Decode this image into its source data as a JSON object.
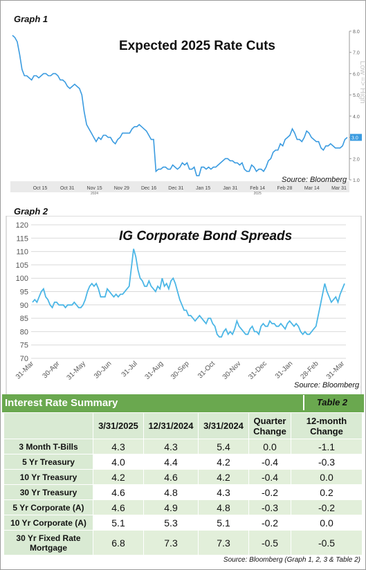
{
  "graph1": {
    "label": "Graph 1",
    "source": "Source: Bloomberg",
    "chart_data": {
      "type": "line",
      "title": "Expected 2025 Rate Cuts",
      "x_tick_labels": [
        "Oct 15",
        "Oct 31",
        "Nov 15",
        "Nov 29",
        "Dec 16",
        "Dec 31",
        "Jan 15",
        "Jan 31",
        "Feb 14",
        "Feb 28",
        "Mar 14",
        "Mar 31"
      ],
      "x_year_labels": [
        {
          "label": "2024",
          "at_tick": 2
        },
        {
          "label": "2025",
          "at_tick": 8
        }
      ],
      "y_tick_labels": [
        "8.0",
        "7.0",
        "6.0",
        "5.0",
        "4.0",
        "3.0",
        "2.0",
        "1.0"
      ],
      "y_axis_side": "right",
      "y_axis_title": "Low => High",
      "ylim": [
        1.0,
        8.0
      ],
      "last_value_label": "3.0",
      "line_color": "#3a9be0",
      "values": [
        7.8,
        7.7,
        7.5,
        6.9,
        6.2,
        5.9,
        5.9,
        5.8,
        5.7,
        5.9,
        5.9,
        5.8,
        5.9,
        6.0,
        6.0,
        5.9,
        5.9,
        6.0,
        6.0,
        5.9,
        5.7,
        5.7,
        5.6,
        5.4,
        5.3,
        5.4,
        5.5,
        5.4,
        5.3,
        5.0,
        4.2,
        3.6,
        3.4,
        3.2,
        3.0,
        2.8,
        3.0,
        2.9,
        3.1,
        3.1,
        3.0,
        3.0,
        2.8,
        2.7,
        2.9,
        3.0,
        3.2,
        3.2,
        3.2,
        3.2,
        3.4,
        3.5,
        3.5,
        3.6,
        3.5,
        3.4,
        3.3,
        3.1,
        2.9,
        2.9,
        1.4,
        1.5,
        1.5,
        1.6,
        1.6,
        1.5,
        1.5,
        1.7,
        1.6,
        1.5,
        1.6,
        1.8,
        1.7,
        1.8,
        1.5,
        1.5,
        1.6,
        1.2,
        1.2,
        1.6,
        1.6,
        1.5,
        1.6,
        1.5,
        1.6,
        1.6,
        1.7,
        1.8,
        1.9,
        2.0,
        2.0,
        1.9,
        1.9,
        1.8,
        1.8,
        1.7,
        1.8,
        1.5,
        1.4,
        1.4,
        1.7,
        1.6,
        1.4,
        1.5,
        1.5,
        1.4,
        1.6,
        1.9,
        2.0,
        2.3,
        2.4,
        2.4,
        2.7,
        2.6,
        2.9,
        3.0,
        3.1,
        3.4,
        3.2,
        2.9,
        2.9,
        2.8,
        3.0,
        3.3,
        3.2,
        3.0,
        2.9,
        2.8,
        2.8,
        2.5,
        2.4,
        2.6,
        2.6,
        2.7,
        2.6,
        2.5,
        2.5,
        2.5,
        2.6,
        2.9,
        3.0
      ]
    }
  },
  "graph2": {
    "label": "Graph 2",
    "source": "Source: Bloomberg",
    "chart_data": {
      "type": "line",
      "title": "IG Corporate Bond Spreads",
      "x_tick_labels": [
        "31-Mar",
        "30-Apr",
        "31-May",
        "30-Jun",
        "31-Jul",
        "31-Aug",
        "30-Sep",
        "31-Oct",
        "30-Nov",
        "31-Dec",
        "31-Jan",
        "28-Feb",
        "31-Mar"
      ],
      "y_tick_labels": [
        "120",
        "115",
        "110",
        "105",
        "100",
        "95",
        "90",
        "85",
        "80",
        "75",
        "70"
      ],
      "ylim": [
        70,
        120
      ],
      "grid": true,
      "line_color": "#4bb6e6",
      "values": [
        91,
        92,
        91,
        93,
        95,
        96,
        93,
        92,
        90,
        89,
        91,
        91,
        90,
        90,
        90,
        89,
        90,
        90,
        90,
        91,
        90,
        89,
        89,
        90,
        92,
        95,
        97,
        98,
        97,
        98,
        96,
        93,
        93,
        93,
        96,
        95,
        94,
        93,
        94,
        93,
        94,
        94,
        95,
        96,
        97,
        104,
        111,
        108,
        103,
        100,
        99,
        97,
        97,
        99,
        97,
        96,
        95,
        97,
        96,
        100,
        97,
        98,
        96,
        99,
        100,
        98,
        95,
        92,
        90,
        88,
        88,
        86,
        86,
        85,
        84,
        85,
        86,
        85,
        84,
        83,
        85,
        85,
        83,
        82,
        79,
        78,
        78,
        80,
        81,
        79,
        80,
        79,
        81,
        84,
        82,
        81,
        80,
        79,
        79,
        81,
        82,
        80,
        80,
        79,
        82,
        83,
        82,
        82,
        84,
        83,
        83,
        82,
        82,
        83,
        82,
        81,
        83,
        84,
        83,
        82,
        83,
        82,
        80,
        79,
        80,
        79,
        79,
        80,
        81,
        82,
        86,
        90,
        94,
        98,
        95,
        93,
        91,
        92,
        93,
        91,
        94,
        96,
        98
      ]
    }
  },
  "table": {
    "title": "Interest Rate Summary",
    "number": "Table 2",
    "headers": [
      "",
      "3/31/2025",
      "12/31/2024",
      "3/31/2024",
      "Quarter Change",
      "12-month Change"
    ],
    "rows": [
      {
        "label": "3 Month T-Bills",
        "cells": [
          "4.3",
          "4.3",
          "5.4",
          "0.0",
          "-1.1"
        ]
      },
      {
        "label": "5 Yr Treasury",
        "cells": [
          "4.0",
          "4.4",
          "4.2",
          "-0.4",
          "-0.3"
        ]
      },
      {
        "label": "10 Yr Treasury",
        "cells": [
          "4.2",
          "4.6",
          "4.2",
          "-0.4",
          "0.0"
        ]
      },
      {
        "label": "30 Yr Treasury",
        "cells": [
          "4.6",
          "4.8",
          "4.3",
          "-0.2",
          "0.2"
        ]
      },
      {
        "label": "5 Yr Corporate (A)",
        "cells": [
          "4.6",
          "4.9",
          "4.8",
          "-0.3",
          "-0.2"
        ]
      },
      {
        "label": "10 Yr Corporate (A)",
        "cells": [
          "5.1",
          "5.3",
          "5.1",
          "-0.2",
          "0.0"
        ]
      },
      {
        "label": "30 Yr Fixed Rate Mortgage",
        "cells": [
          "6.8",
          "7.3",
          "7.3",
          "-0.5",
          "-0.5"
        ]
      }
    ],
    "footnote": "Source: Bloomberg (Graph 1, 2, 3 & Table 2)"
  }
}
